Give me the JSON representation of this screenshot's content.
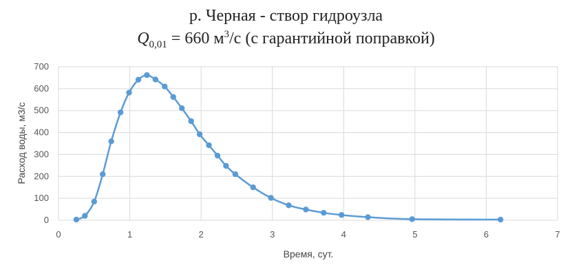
{
  "chart_data": {
    "type": "scatter",
    "title_line1": "р. Черная - створ гидроузла",
    "title_line2": {
      "q_symbol": "Q",
      "q_subscript": "0,01",
      "value_text": " = 660 м",
      "superscript": "3",
      "rest": "/с (с гарантийной поправкой)"
    },
    "xlabel": "Время, сут.",
    "ylabel": "Расход воды, м3/с",
    "xlim": [
      0,
      7
    ],
    "ylim": [
      0,
      700
    ],
    "xticks": [
      0,
      1,
      2,
      3,
      4,
      5,
      6,
      7
    ],
    "yticks": [
      0,
      100,
      200,
      300,
      400,
      500,
      600,
      700
    ],
    "grid": true,
    "smooth_line": true,
    "color": "#5b9bd5",
    "grid_color": "#d9d9d9",
    "series": [
      {
        "x": [
          0.25,
          0.37,
          0.5,
          0.62,
          0.74,
          0.87,
          0.99,
          1.12,
          1.24,
          1.36,
          1.49,
          1.61,
          1.73,
          1.86,
          1.98,
          2.11,
          2.23,
          2.35,
          2.48,
          2.73,
          2.98,
          3.23,
          3.47,
          3.72,
          3.97,
          4.34,
          4.96,
          6.2
        ],
        "y": [
          3,
          20,
          85,
          210,
          360,
          492,
          582,
          641,
          662,
          642,
          610,
          562,
          511,
          452,
          392,
          342,
          295,
          248,
          210,
          150,
          102,
          68,
          49,
          34,
          24,
          14,
          5,
          3
        ]
      }
    ]
  }
}
